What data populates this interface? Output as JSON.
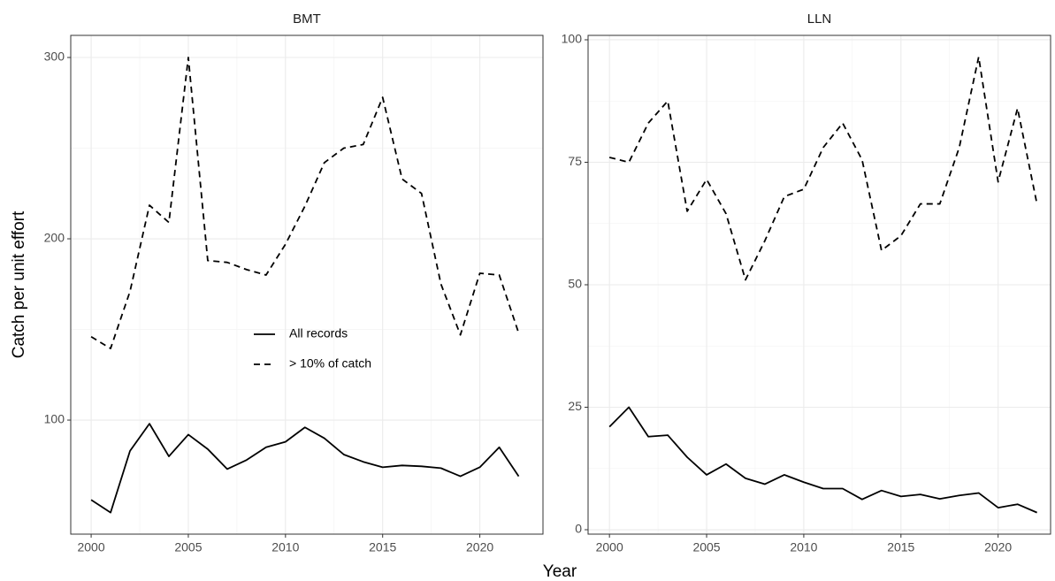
{
  "chart_data": [
    {
      "type": "line",
      "title": "BMT",
      "x": [
        2000,
        2001,
        2002,
        2003,
        2004,
        2005,
        2006,
        2007,
        2008,
        2009,
        2010,
        2011,
        2012,
        2013,
        2014,
        2015,
        2016,
        2017,
        2018,
        2019,
        2020,
        2021,
        2022
      ],
      "series": [
        {
          "name": "All records",
          "color": "#000000",
          "dash": false,
          "values": [
            56,
            49,
            83,
            98,
            80,
            92,
            84,
            73,
            78,
            85,
            88,
            96,
            90,
            81,
            77,
            74,
            75,
            74.5,
            73.5,
            69,
            74,
            85,
            69
          ]
        },
        {
          "name": "> 10% of catch",
          "color": "#000000",
          "dash": true,
          "values": [
            146,
            139.5,
            171,
            218.5,
            209,
            300,
            188,
            187,
            183,
            180,
            197,
            218,
            242,
            250,
            252,
            278,
            233,
            225,
            175,
            147,
            181,
            180,
            148
          ]
        }
      ],
      "xlim": [
        1998.95,
        2023.25
      ],
      "xticks": [
        2000,
        2005,
        2010,
        2015,
        2020
      ],
      "ylim": [
        37.1,
        312.2
      ],
      "yticks": [
        100,
        200,
        300
      ],
      "grid": true,
      "legend": "center"
    },
    {
      "type": "line",
      "title": "LLN",
      "x": [
        2000,
        2001,
        2002,
        2003,
        2004,
        2005,
        2006,
        2007,
        2008,
        2009,
        2010,
        2011,
        2012,
        2013,
        2014,
        2015,
        2016,
        2017,
        2018,
        2019,
        2020,
        2021,
        2022
      ],
      "series": [
        {
          "color": "#000000",
          "dash": false,
          "values": [
            21,
            25,
            19,
            19.3,
            14.8,
            11.2,
            13.4,
            10.5,
            9.3,
            11.2,
            9.7,
            8.4,
            8.4,
            6.2,
            8,
            6.8,
            7.2,
            6.3,
            7,
            7.5,
            4.5,
            5.2,
            3.5
          ]
        },
        {
          "color": "#000000",
          "dash": true,
          "values": [
            76,
            75,
            83,
            87.5,
            65,
            71.5,
            64.5,
            51,
            59,
            68,
            69.5,
            78,
            83,
            75.5,
            57,
            60,
            66.5,
            66.5,
            78,
            96.5,
            71,
            86,
            66.5
          ]
        }
      ],
      "xlim": [
        1998.9,
        2022.7
      ],
      "xticks": [
        2000,
        2005,
        2010,
        2015,
        2020
      ],
      "ylim": [
        -0.9,
        100.9
      ],
      "yticks": [
        0,
        25,
        50,
        75,
        100
      ],
      "grid": true
    }
  ],
  "xlabel": "Year",
  "ylabel": "Catch per unit effort"
}
